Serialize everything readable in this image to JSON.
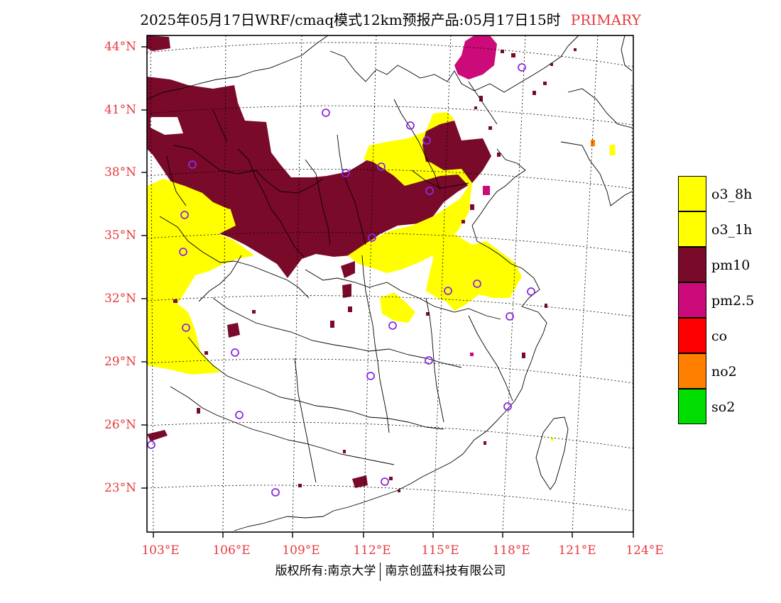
{
  "header": {
    "title": "2025年05月17日WRF/cmaq模式12km预报产品:05月17日15时",
    "tag": "PRIMARY"
  },
  "axes": {
    "lat_labels": [
      "44°N",
      "41°N",
      "38°N",
      "35°N",
      "32°N",
      "29°N",
      "26°N",
      "23°N"
    ],
    "lon_labels": [
      "103°E",
      "106°E",
      "109°E",
      "112°E",
      "115°E",
      "118°E",
      "121°E",
      "124°E"
    ]
  },
  "legend": {
    "items": [
      {
        "label": "o3_8h",
        "color": "#ffff00"
      },
      {
        "label": "o3_1h",
        "color": "#ffff00"
      },
      {
        "label": "pm10",
        "color": "#7a0a2a"
      },
      {
        "label": "pm2.5",
        "color": "#cc0a7a"
      },
      {
        "label": "co",
        "color": "#ff0000"
      },
      {
        "label": "no2",
        "color": "#ff8000"
      },
      {
        "label": "so2",
        "color": "#00dd00"
      }
    ]
  },
  "footer": {
    "copyright_left": "版权所有:南京大学",
    "copyright_right": "南京创蓝科技有限公司"
  },
  "colors": {
    "axis_label": "#e8393c",
    "station_marker": "#8a2be2"
  }
}
